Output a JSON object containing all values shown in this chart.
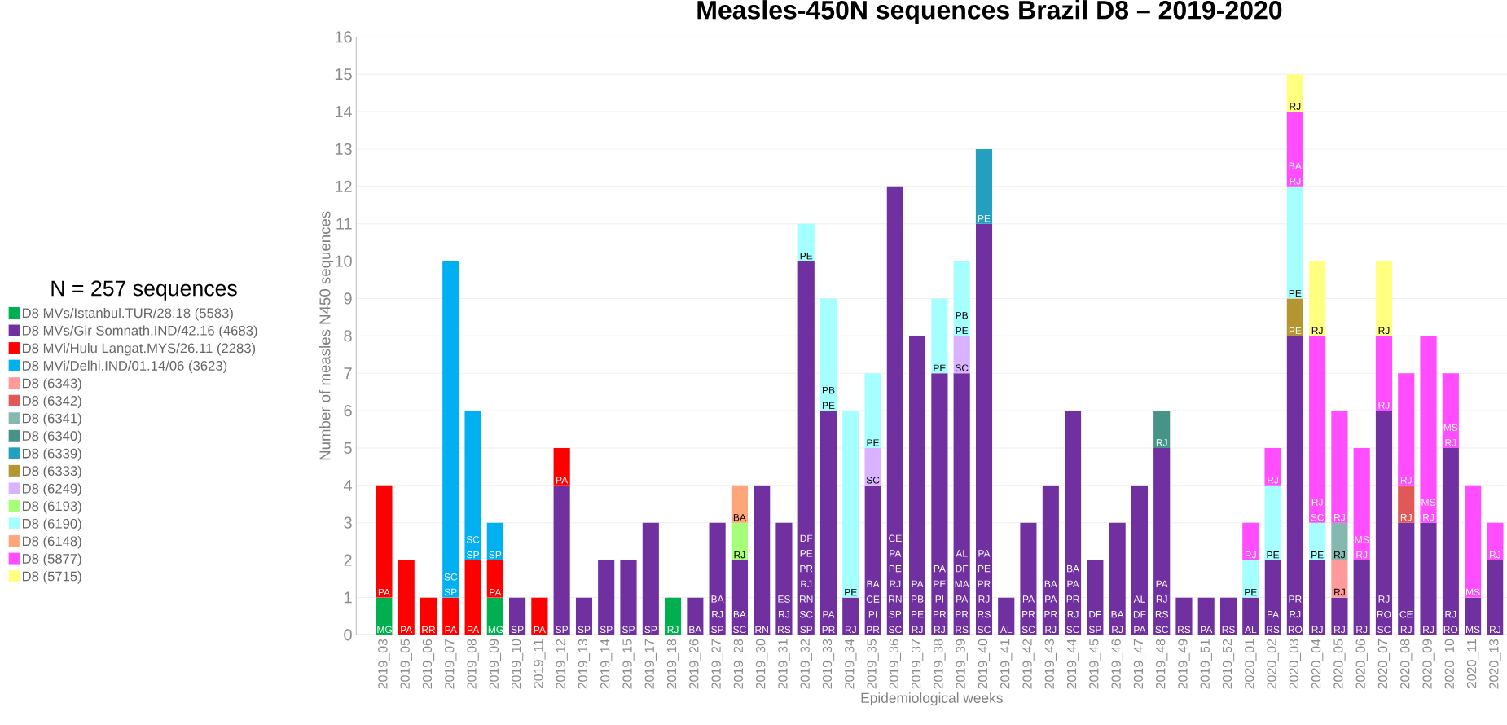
{
  "chart_data": {
    "type": "bar",
    "stacked": true,
    "title": "Measles-450N sequences Brazil D8 – 2019-2020",
    "xlabel": "Epidemiological weeks",
    "ylabel": "Number of measles N450 sequences",
    "legend_title": "N = 257 sequences",
    "legend": "left",
    "grid": "y",
    "ylim": [
      0,
      16
    ],
    "yticks": [
      0,
      1,
      2,
      3,
      4,
      5,
      6,
      7,
      8,
      9,
      10,
      11,
      12,
      13,
      14,
      15,
      16
    ],
    "categories": [
      "2019_03",
      "2019_05",
      "2019_06",
      "2019_07",
      "2019_08",
      "2019_09",
      "2019_10",
      "2019_11",
      "2019_12",
      "2019_13",
      "2019_14",
      "2019_15",
      "2019_17",
      "2019_18",
      "2019_26",
      "2019_27",
      "2019_28",
      "2019_30",
      "2019_31",
      "2019_32",
      "2019_33",
      "2019_34",
      "2019_35",
      "2019_36",
      "2019_37",
      "2019_38",
      "2019_39",
      "2019_40",
      "2019_41",
      "2019_42",
      "2019_43",
      "2019_44",
      "2019_45",
      "2019_46",
      "2019_47",
      "2019_48",
      "2019_49",
      "2019_51",
      "2019_52",
      "2020_01",
      "2020_02",
      "2020_03",
      "2020_04",
      "2020_05",
      "2020_06",
      "2020_07",
      "2020_08",
      "2020_09",
      "2020_10",
      "2020_11",
      "2020_13"
    ],
    "series": [
      {
        "name": "D8 MVs/Istanbul.TUR/28.18 (5583)",
        "color": "#00b050",
        "values": [
          1,
          null,
          null,
          null,
          null,
          1,
          null,
          null,
          null,
          null,
          null,
          null,
          null,
          1,
          null,
          null,
          null,
          null,
          null,
          null,
          null,
          null,
          null,
          null,
          null,
          null,
          null,
          null,
          null,
          null,
          null,
          null,
          null,
          null,
          null,
          null,
          null,
          null,
          null,
          null,
          null,
          null,
          null,
          null,
          null,
          null,
          null,
          null,
          null,
          null,
          null
        ],
        "value_labels": [
          "MG",
          null,
          null,
          null,
          null,
          "MG",
          null,
          null,
          null,
          null,
          null,
          null,
          null,
          "RJ",
          null,
          null,
          null,
          null,
          null,
          null,
          null,
          null,
          null,
          null,
          null,
          null,
          null,
          null,
          null,
          null,
          null,
          null,
          null,
          null,
          null,
          null,
          null,
          null,
          null,
          null,
          null,
          null,
          null,
          null,
          null,
          null,
          null,
          null,
          null,
          null,
          null
        ]
      },
      {
        "name": "D8 MVs/Gir Somnath.IND/42.16 (4683)",
        "color": "#7030a0",
        "values": [
          null,
          null,
          null,
          null,
          null,
          null,
          1,
          null,
          4,
          1,
          2,
          2,
          3,
          null,
          1,
          3,
          2,
          4,
          3,
          10,
          6,
          1,
          4,
          12,
          8,
          7,
          7,
          11,
          1,
          3,
          4,
          6,
          2,
          3,
          4,
          5,
          1,
          1,
          1,
          1,
          2,
          8,
          2,
          1,
          2,
          6,
          3,
          3,
          5,
          1,
          2
        ],
        "value_labels": [
          null,
          null,
          null,
          null,
          null,
          null,
          "SP",
          null,
          "SP",
          "SP",
          "SP",
          "SP",
          "SP",
          null,
          "BA",
          "BA RJ SP",
          "BA SC",
          "RN",
          "ES RJ RS",
          "DF PE PR RJ RN SC SP",
          "PA PR",
          "RJ",
          "BA CE PI PR",
          "CE PA PE RJ RN SP SC",
          "PA PB PE RJ",
          "PA PE PI PR RJ",
          "AL DF MA PA PR RS",
          "PA PE PR RJ RS SC",
          "AL",
          "PA PR SC",
          "BA PA PR RJ",
          "BA PA PR RJ SC",
          "DF SP",
          "BA RJ",
          "AL DF PA",
          "PA RJ RS SC",
          "RS",
          "PA",
          "RS",
          "AL",
          "PA RS",
          "PR RJ RO",
          "RJ",
          "RJ",
          "RJ",
          "RJ RO SC",
          "CE RJ",
          "RJ",
          "RJ RO",
          "MS",
          "RJ"
        ]
      },
      {
        "name": "D8 MVi/Hulu Langat.MYS/26.11 (2283)",
        "color": "#ff0000",
        "values": [
          3,
          2,
          1,
          1,
          2,
          1,
          null,
          1,
          1,
          null,
          null,
          null,
          null,
          null,
          null,
          null,
          null,
          null,
          null,
          null,
          null,
          null,
          null,
          null,
          null,
          null,
          null,
          null,
          null,
          null,
          null,
          null,
          null,
          null,
          null,
          null,
          null,
          null,
          null,
          null,
          null,
          null,
          null,
          null,
          null,
          null,
          null,
          null,
          null,
          null,
          null
        ],
        "value_labels": [
          "PA",
          "PA",
          "RR",
          "PA",
          "PA",
          "PA",
          null,
          "PA",
          "PA",
          null,
          null,
          null,
          null,
          null,
          null,
          null,
          null,
          null,
          null,
          null,
          null,
          null,
          null,
          null,
          null,
          null,
          null,
          null,
          null,
          null,
          null,
          null,
          null,
          null,
          null,
          null,
          null,
          null,
          null,
          null,
          null,
          null,
          null,
          null,
          null,
          null,
          null,
          null,
          null,
          null,
          null
        ]
      },
      {
        "name": "D8 MVi/Delhi.IND/01.14/06 (3623)",
        "color": "#00b0f0",
        "values": [
          null,
          null,
          null,
          9,
          4,
          1,
          null,
          null,
          null,
          null,
          null,
          null,
          null,
          null,
          null,
          null,
          null,
          null,
          null,
          null,
          null,
          null,
          null,
          null,
          null,
          null,
          null,
          null,
          null,
          null,
          null,
          null,
          null,
          null,
          null,
          null,
          null,
          null,
          null,
          null,
          null,
          null,
          null,
          null,
          null,
          null,
          null,
          null,
          null,
          null,
          null
        ],
        "value_labels": [
          null,
          null,
          null,
          "SC SP",
          "SC SP",
          "SP",
          null,
          null,
          null,
          null,
          null,
          null,
          null,
          null,
          null,
          null,
          null,
          null,
          null,
          null,
          null,
          null,
          null,
          null,
          null,
          null,
          null,
          null,
          null,
          null,
          null,
          null,
          null,
          null,
          null,
          null,
          null,
          null,
          null,
          null,
          null,
          null,
          null,
          null,
          null,
          null,
          null,
          null,
          null,
          null,
          null
        ]
      },
      {
        "name": "D8 (6343)",
        "color": "#ff9a9a",
        "values": [
          null,
          null,
          null,
          null,
          null,
          null,
          null,
          null,
          null,
          null,
          null,
          null,
          null,
          null,
          null,
          null,
          null,
          null,
          null,
          null,
          null,
          null,
          null,
          null,
          null,
          null,
          null,
          null,
          null,
          null,
          null,
          null,
          null,
          null,
          null,
          null,
          null,
          null,
          null,
          null,
          null,
          null,
          null,
          1,
          null,
          null,
          null,
          null,
          null,
          null,
          null
        ],
        "value_labels": [
          null,
          null,
          null,
          null,
          null,
          null,
          null,
          null,
          null,
          null,
          null,
          null,
          null,
          null,
          null,
          null,
          null,
          null,
          null,
          null,
          null,
          null,
          null,
          null,
          null,
          null,
          null,
          null,
          null,
          null,
          null,
          null,
          null,
          null,
          null,
          null,
          null,
          null,
          null,
          null,
          null,
          null,
          null,
          "RJ",
          null,
          null,
          null,
          null,
          null,
          null,
          null
        ]
      },
      {
        "name": "D8 (6342)",
        "color": "#e05858",
        "values": [
          null,
          null,
          null,
          null,
          null,
          null,
          null,
          null,
          null,
          null,
          null,
          null,
          null,
          null,
          null,
          null,
          null,
          null,
          null,
          null,
          null,
          null,
          null,
          null,
          null,
          null,
          null,
          null,
          null,
          null,
          null,
          null,
          null,
          null,
          null,
          null,
          null,
          null,
          null,
          null,
          null,
          null,
          null,
          null,
          null,
          null,
          1,
          null,
          null,
          null,
          null
        ],
        "value_labels": [
          null,
          null,
          null,
          null,
          null,
          null,
          null,
          null,
          null,
          null,
          null,
          null,
          null,
          null,
          null,
          null,
          null,
          null,
          null,
          null,
          null,
          null,
          null,
          null,
          null,
          null,
          null,
          null,
          null,
          null,
          null,
          null,
          null,
          null,
          null,
          null,
          null,
          null,
          null,
          null,
          null,
          null,
          null,
          null,
          null,
          null,
          "RJ",
          null,
          null,
          null,
          null
        ]
      },
      {
        "name": "D8 (6341)",
        "color": "#85b8ae",
        "values": [
          null,
          null,
          null,
          null,
          null,
          null,
          null,
          null,
          null,
          null,
          null,
          null,
          null,
          null,
          null,
          null,
          null,
          null,
          null,
          null,
          null,
          null,
          null,
          null,
          null,
          null,
          null,
          null,
          null,
          null,
          null,
          null,
          null,
          null,
          null,
          null,
          null,
          null,
          null,
          null,
          null,
          null,
          null,
          1,
          null,
          null,
          null,
          null,
          null,
          null,
          null
        ],
        "value_labels": [
          null,
          null,
          null,
          null,
          null,
          null,
          null,
          null,
          null,
          null,
          null,
          null,
          null,
          null,
          null,
          null,
          null,
          null,
          null,
          null,
          null,
          null,
          null,
          null,
          null,
          null,
          null,
          null,
          null,
          null,
          null,
          null,
          null,
          null,
          null,
          null,
          null,
          null,
          null,
          null,
          null,
          null,
          null,
          "RJ",
          null,
          null,
          null,
          null,
          null,
          null,
          null
        ]
      },
      {
        "name": "D8 (6340)",
        "color": "#469488",
        "values": [
          null,
          null,
          null,
          null,
          null,
          null,
          null,
          null,
          null,
          null,
          null,
          null,
          null,
          null,
          null,
          null,
          null,
          null,
          null,
          null,
          null,
          null,
          null,
          null,
          null,
          null,
          null,
          null,
          null,
          null,
          null,
          null,
          null,
          null,
          null,
          1,
          null,
          null,
          null,
          null,
          null,
          null,
          null,
          null,
          null,
          null,
          null,
          null,
          null,
          null,
          null
        ],
        "value_labels": [
          null,
          null,
          null,
          null,
          null,
          null,
          null,
          null,
          null,
          null,
          null,
          null,
          null,
          null,
          null,
          null,
          null,
          null,
          null,
          null,
          null,
          null,
          null,
          null,
          null,
          null,
          null,
          null,
          null,
          null,
          null,
          null,
          null,
          null,
          null,
          "RJ",
          null,
          null,
          null,
          null,
          null,
          null,
          null,
          null,
          null,
          null,
          null,
          null,
          null,
          null,
          null
        ]
      },
      {
        "name": "D8 (6339)",
        "color": "#23a0c0",
        "values": [
          null,
          null,
          null,
          null,
          null,
          null,
          null,
          null,
          null,
          null,
          null,
          null,
          null,
          null,
          null,
          null,
          null,
          null,
          null,
          null,
          null,
          null,
          null,
          null,
          null,
          null,
          null,
          2,
          null,
          null,
          null,
          null,
          null,
          null,
          null,
          null,
          null,
          null,
          null,
          null,
          null,
          null,
          null,
          null,
          null,
          null,
          null,
          null,
          null,
          null,
          null
        ],
        "value_labels": [
          null,
          null,
          null,
          null,
          null,
          null,
          null,
          null,
          null,
          null,
          null,
          null,
          null,
          null,
          null,
          null,
          null,
          null,
          null,
          null,
          null,
          null,
          null,
          null,
          null,
          null,
          null,
          "PE",
          null,
          null,
          null,
          null,
          null,
          null,
          null,
          null,
          null,
          null,
          null,
          null,
          null,
          null,
          null,
          null,
          null,
          null,
          null,
          null,
          null,
          null,
          null
        ]
      },
      {
        "name": "D8 (6333)",
        "color": "#b5952f",
        "values": [
          null,
          null,
          null,
          null,
          null,
          null,
          null,
          null,
          null,
          null,
          null,
          null,
          null,
          null,
          null,
          null,
          null,
          null,
          null,
          null,
          null,
          null,
          null,
          null,
          null,
          null,
          null,
          null,
          null,
          null,
          null,
          null,
          null,
          null,
          null,
          null,
          null,
          null,
          null,
          null,
          null,
          1,
          null,
          null,
          null,
          null,
          null,
          null,
          null,
          null,
          null
        ],
        "value_labels": [
          null,
          null,
          null,
          null,
          null,
          null,
          null,
          null,
          null,
          null,
          null,
          null,
          null,
          null,
          null,
          null,
          null,
          null,
          null,
          null,
          null,
          null,
          null,
          null,
          null,
          null,
          null,
          null,
          null,
          null,
          null,
          null,
          null,
          null,
          null,
          null,
          null,
          null,
          null,
          null,
          null,
          "PE",
          null,
          null,
          null,
          null,
          null,
          null,
          null,
          null,
          null
        ]
      },
      {
        "name": "D8 (6249)",
        "color": "#d9b3ff",
        "values": [
          null,
          null,
          null,
          null,
          null,
          null,
          null,
          null,
          null,
          null,
          null,
          null,
          null,
          null,
          null,
          null,
          null,
          null,
          null,
          null,
          null,
          null,
          1,
          null,
          null,
          null,
          1,
          null,
          null,
          null,
          null,
          null,
          null,
          null,
          null,
          null,
          null,
          null,
          null,
          null,
          null,
          null,
          null,
          null,
          null,
          null,
          null,
          null,
          null,
          null,
          null
        ],
        "value_labels": [
          null,
          null,
          null,
          null,
          null,
          null,
          null,
          null,
          null,
          null,
          null,
          null,
          null,
          null,
          null,
          null,
          null,
          null,
          null,
          null,
          null,
          null,
          "SC",
          null,
          null,
          null,
          "SC",
          null,
          null,
          null,
          null,
          null,
          null,
          null,
          null,
          null,
          null,
          null,
          null,
          null,
          null,
          null,
          null,
          null,
          null,
          null,
          null,
          null,
          null,
          null,
          null
        ]
      },
      {
        "name": "D8 (6193)",
        "color": "#a6ff78",
        "values": [
          null,
          null,
          null,
          null,
          null,
          null,
          null,
          null,
          null,
          null,
          null,
          null,
          null,
          null,
          null,
          null,
          1,
          null,
          null,
          null,
          null,
          null,
          null,
          null,
          null,
          null,
          null,
          null,
          null,
          null,
          null,
          null,
          null,
          null,
          null,
          null,
          null,
          null,
          null,
          null,
          null,
          null,
          null,
          null,
          null,
          null,
          null,
          null,
          null,
          null,
          null
        ],
        "value_labels": [
          null,
          null,
          null,
          null,
          null,
          null,
          null,
          null,
          null,
          null,
          null,
          null,
          null,
          null,
          null,
          null,
          "RJ",
          null,
          null,
          null,
          null,
          null,
          null,
          null,
          null,
          null,
          null,
          null,
          null,
          null,
          null,
          null,
          null,
          null,
          null,
          null,
          null,
          null,
          null,
          null,
          null,
          null,
          null,
          null,
          null,
          null,
          null,
          null,
          null,
          null,
          null
        ]
      },
      {
        "name": "D8 (6190)",
        "color": "#a6ffff",
        "values": [
          null,
          null,
          null,
          null,
          null,
          null,
          null,
          null,
          null,
          null,
          null,
          null,
          null,
          null,
          null,
          null,
          null,
          null,
          null,
          1,
          3,
          5,
          2,
          null,
          null,
          2,
          2,
          null,
          null,
          null,
          null,
          null,
          null,
          null,
          null,
          null,
          null,
          null,
          null,
          1,
          2,
          3,
          1,
          null,
          null,
          null,
          null,
          null,
          null,
          null,
          null
        ],
        "value_labels": [
          null,
          null,
          null,
          null,
          null,
          null,
          null,
          null,
          null,
          null,
          null,
          null,
          null,
          null,
          null,
          null,
          null,
          null,
          null,
          "PE",
          "PB PE",
          "PE",
          "PE",
          null,
          null,
          "PE",
          "PB PE",
          null,
          null,
          null,
          null,
          null,
          null,
          null,
          null,
          null,
          null,
          null,
          null,
          "PE",
          "PE",
          "PE",
          "PE",
          null,
          null,
          null,
          null,
          null,
          null,
          null,
          null
        ]
      },
      {
        "name": "D8 (6148)",
        "color": "#ffa57a",
        "values": [
          null,
          null,
          null,
          null,
          null,
          null,
          null,
          null,
          null,
          null,
          null,
          null,
          null,
          null,
          null,
          null,
          1,
          null,
          null,
          null,
          null,
          null,
          null,
          null,
          null,
          null,
          null,
          null,
          null,
          null,
          null,
          null,
          null,
          null,
          null,
          null,
          null,
          null,
          null,
          null,
          null,
          null,
          null,
          null,
          null,
          null,
          null,
          null,
          null,
          null,
          null
        ],
        "value_labels": [
          null,
          null,
          null,
          null,
          null,
          null,
          null,
          null,
          null,
          null,
          null,
          null,
          null,
          null,
          null,
          null,
          "BA",
          null,
          null,
          null,
          null,
          null,
          null,
          null,
          null,
          null,
          null,
          null,
          null,
          null,
          null,
          null,
          null,
          null,
          null,
          null,
          null,
          null,
          null,
          null,
          null,
          null,
          null,
          null,
          null,
          null,
          null,
          null,
          null,
          null,
          null
        ]
      },
      {
        "name": "D8 (5877)",
        "color": "#ff4dff",
        "values": [
          null,
          null,
          null,
          null,
          null,
          null,
          null,
          null,
          null,
          null,
          null,
          null,
          null,
          null,
          null,
          null,
          null,
          null,
          null,
          null,
          null,
          null,
          null,
          null,
          null,
          null,
          null,
          null,
          null,
          null,
          null,
          null,
          null,
          null,
          null,
          null,
          null,
          null,
          null,
          1,
          1,
          2,
          5,
          3,
          3,
          2,
          3,
          5,
          2,
          3,
          1
        ],
        "value_labels": [
          null,
          null,
          null,
          null,
          null,
          null,
          null,
          null,
          null,
          null,
          null,
          null,
          null,
          null,
          null,
          null,
          null,
          null,
          null,
          null,
          null,
          null,
          null,
          null,
          null,
          null,
          null,
          null,
          null,
          null,
          null,
          null,
          null,
          null,
          null,
          null,
          null,
          null,
          null,
          "RJ",
          "RJ",
          "BA RJ",
          "RJ SC",
          "RJ",
          "MS RJ",
          "RJ",
          "RJ",
          "MS RJ",
          "MS RJ",
          "MS",
          "RJ"
        ]
      },
      {
        "name": "D8 (5715)",
        "color": "#ffff80",
        "values": [
          null,
          null,
          null,
          null,
          null,
          null,
          null,
          null,
          null,
          null,
          null,
          null,
          null,
          null,
          null,
          null,
          null,
          null,
          null,
          null,
          null,
          null,
          null,
          null,
          null,
          null,
          null,
          null,
          null,
          null,
          null,
          null,
          null,
          null,
          null,
          null,
          null,
          null,
          null,
          null,
          null,
          1,
          2,
          null,
          null,
          2,
          null,
          null,
          null,
          null,
          null
        ],
        "value_labels": [
          null,
          null,
          null,
          null,
          null,
          null,
          null,
          null,
          null,
          null,
          null,
          null,
          null,
          null,
          null,
          null,
          null,
          null,
          null,
          null,
          null,
          null,
          null,
          null,
          null,
          null,
          null,
          null,
          null,
          null,
          null,
          null,
          null,
          null,
          null,
          null,
          null,
          null,
          null,
          null,
          null,
          "RJ",
          "RJ",
          null,
          null,
          "RJ",
          null,
          null,
          null,
          null,
          null
        ]
      }
    ]
  }
}
